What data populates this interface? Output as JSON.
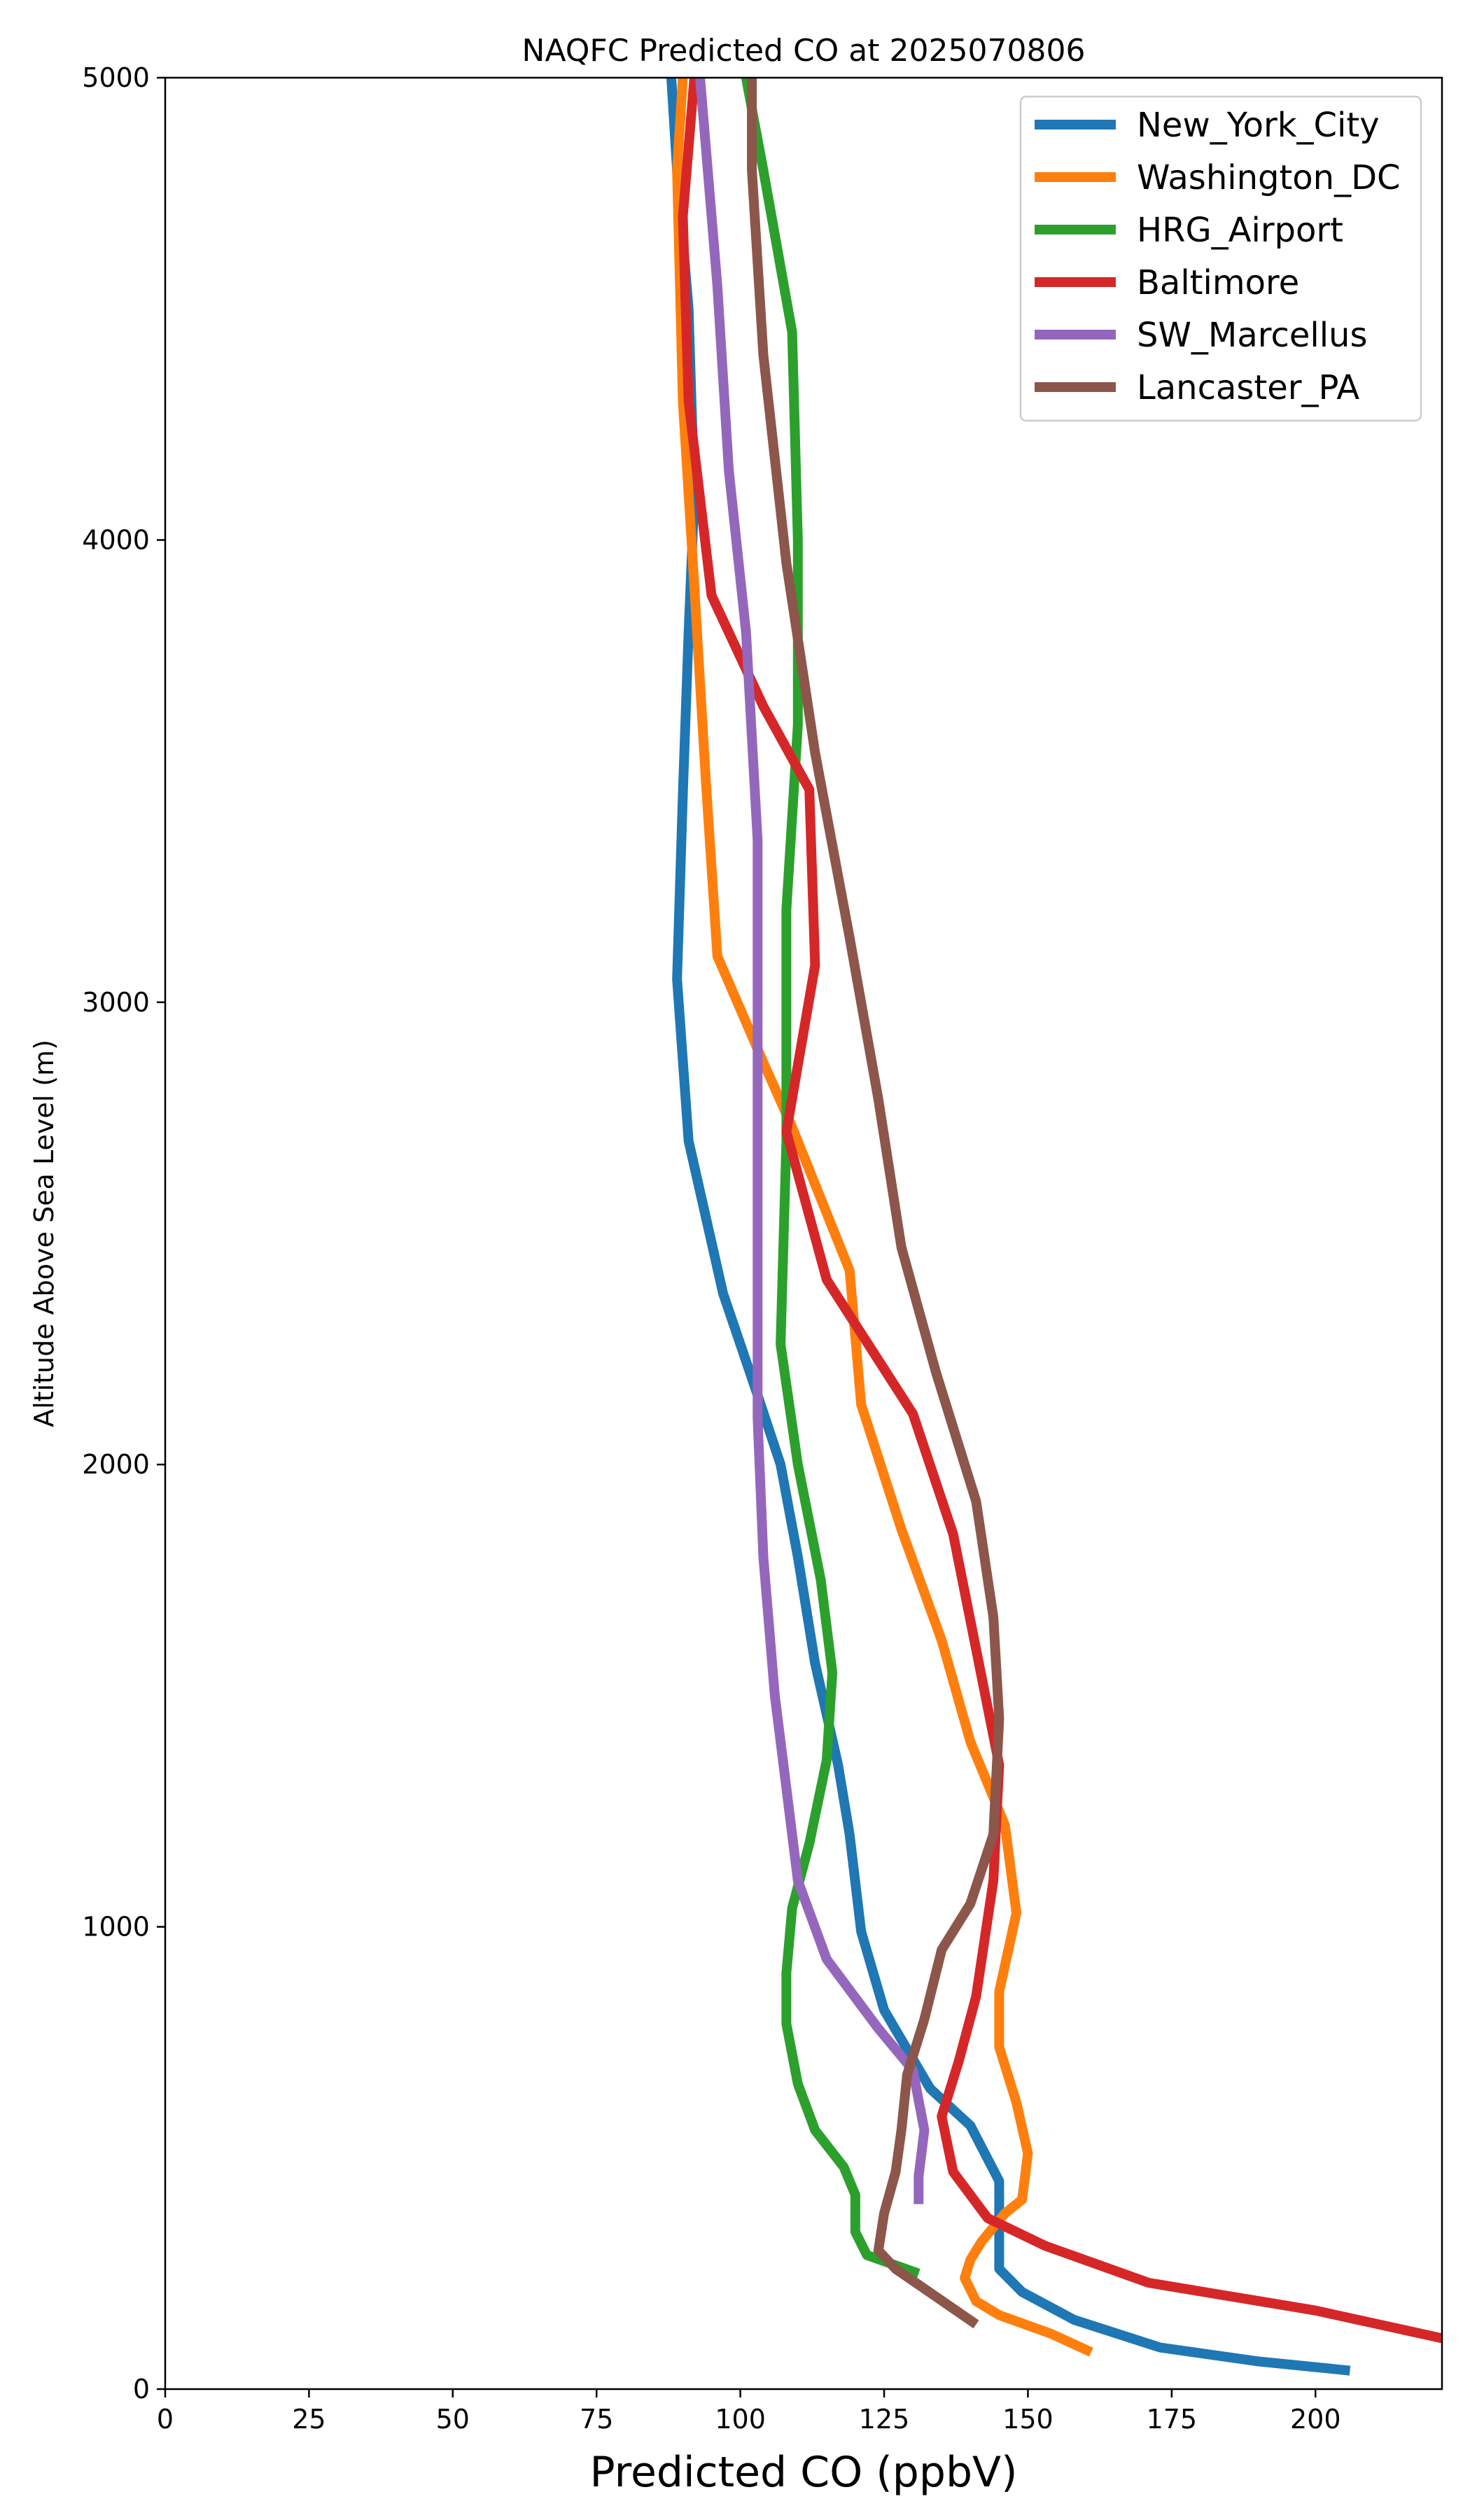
{
  "chart_data": {
    "type": "line",
    "title": "NAQFC Predicted CO at 2025070806",
    "xlabel": "Predicted CO (ppbV)",
    "ylabel": "Altitude Above Sea Level (m)",
    "xlim": [
      0,
      222
    ],
    "ylim": [
      0,
      5000
    ],
    "xticks": [
      0,
      25,
      50,
      75,
      100,
      125,
      150,
      175,
      200
    ],
    "yticks": [
      0,
      1000,
      2000,
      3000,
      4000,
      5000
    ],
    "grid": false,
    "legend_position": "top-right",
    "series": [
      {
        "name": "New_York_City",
        "color": "#1f77b4",
        "points": [
          [
            206,
            40
          ],
          [
            190,
            60
          ],
          [
            173,
            90
          ],
          [
            158,
            150
          ],
          [
            149,
            210
          ],
          [
            145,
            260
          ],
          [
            145,
            450
          ],
          [
            140,
            570
          ],
          [
            133,
            650
          ],
          [
            125,
            820
          ],
          [
            121,
            990
          ],
          [
            119,
            1200
          ],
          [
            117,
            1350
          ],
          [
            113,
            1570
          ],
          [
            110,
            1800
          ],
          [
            107,
            2000
          ],
          [
            103,
            2150
          ],
          [
            97,
            2370
          ],
          [
            91,
            2700
          ],
          [
            89,
            3050
          ],
          [
            90,
            3450
          ],
          [
            91,
            3800
          ],
          [
            92,
            4100
          ],
          [
            91,
            4500
          ],
          [
            89,
            4800
          ],
          [
            88,
            5000
          ]
        ]
      },
      {
        "name": "Washington_DC",
        "color": "#ff7f0e",
        "points": [
          [
            161,
            80
          ],
          [
            154,
            120
          ],
          [
            145,
            160
          ],
          [
            141,
            190
          ],
          [
            139,
            240
          ],
          [
            140,
            280
          ],
          [
            142,
            320
          ],
          [
            146,
            380
          ],
          [
            149,
            410
          ],
          [
            150,
            510
          ],
          [
            148,
            620
          ],
          [
            145,
            740
          ],
          [
            145,
            860
          ],
          [
            148,
            1030
          ],
          [
            146,
            1220
          ],
          [
            140,
            1400
          ],
          [
            135,
            1620
          ],
          [
            128,
            1860
          ],
          [
            121,
            2130
          ],
          [
            119,
            2420
          ],
          [
            109,
            2730
          ],
          [
            104,
            2870
          ],
          [
            96,
            3100
          ],
          [
            94,
            3480
          ],
          [
            92,
            3900
          ],
          [
            90,
            4300
          ],
          [
            89,
            4800
          ],
          [
            90,
            5000
          ]
        ]
      },
      {
        "name": "HRG_Airport",
        "color": "#2ca02c",
        "points": [
          [
            131,
            250
          ],
          [
            122,
            290
          ],
          [
            120,
            340
          ],
          [
            120,
            420
          ],
          [
            118,
            480
          ],
          [
            113,
            560
          ],
          [
            110,
            660
          ],
          [
            108,
            790
          ],
          [
            108,
            900
          ],
          [
            109,
            1040
          ],
          [
            112,
            1180
          ],
          [
            115,
            1360
          ],
          [
            116,
            1550
          ],
          [
            114,
            1750
          ],
          [
            110,
            2000
          ],
          [
            107,
            2260
          ],
          [
            108,
            2700
          ],
          [
            108,
            3200
          ],
          [
            110,
            3600
          ],
          [
            110,
            4000
          ],
          [
            109,
            4450
          ],
          [
            104,
            4800
          ],
          [
            101,
            5000
          ]
        ]
      },
      {
        "name": "Baltimore",
        "color": "#d62728",
        "points": [
          [
            222,
            110
          ],
          [
            200,
            170
          ],
          [
            171,
            230
          ],
          [
            153,
            310
          ],
          [
            143,
            370
          ],
          [
            137,
            470
          ],
          [
            135,
            590
          ],
          [
            138,
            710
          ],
          [
            141,
            850
          ],
          [
            144,
            1100
          ],
          [
            145,
            1350
          ],
          [
            141,
            1600
          ],
          [
            137,
            1850
          ],
          [
            130,
            2110
          ],
          [
            115,
            2400
          ],
          [
            108,
            2720
          ],
          [
            113,
            3080
          ],
          [
            112,
            3460
          ],
          [
            104,
            3640
          ],
          [
            95,
            3880
          ],
          [
            91,
            4300
          ],
          [
            90,
            4700
          ],
          [
            92,
            5000
          ]
        ]
      },
      {
        "name": "SW_Marcellus",
        "color": "#9467bd",
        "points": [
          [
            131,
            400
          ],
          [
            131,
            460
          ],
          [
            132,
            560
          ],
          [
            130,
            690
          ],
          [
            124,
            780
          ],
          [
            115,
            930
          ],
          [
            110,
            1100
          ],
          [
            108,
            1300
          ],
          [
            106,
            1500
          ],
          [
            104,
            1800
          ],
          [
            103,
            2100
          ],
          [
            103,
            2400
          ],
          [
            103,
            2700
          ],
          [
            103,
            3000
          ],
          [
            103,
            3350
          ],
          [
            101,
            3800
          ],
          [
            98,
            4150
          ],
          [
            96,
            4550
          ],
          [
            93,
            5000
          ]
        ]
      },
      {
        "name": "Lancaster_PA",
        "color": "#8c564b",
        "points": [
          [
            141,
            140
          ],
          [
            134,
            200
          ],
          [
            127,
            260
          ],
          [
            124,
            300
          ],
          [
            125,
            380
          ],
          [
            127,
            470
          ],
          [
            128,
            560
          ],
          [
            129,
            680
          ],
          [
            132,
            800
          ],
          [
            135,
            950
          ],
          [
            140,
            1050
          ],
          [
            144,
            1200
          ],
          [
            145,
            1450
          ],
          [
            144,
            1670
          ],
          [
            141,
            1920
          ],
          [
            134,
            2200
          ],
          [
            128,
            2470
          ],
          [
            124,
            2790
          ],
          [
            119,
            3140
          ],
          [
            113,
            3540
          ],
          [
            108,
            3950
          ],
          [
            104,
            4400
          ],
          [
            102,
            4800
          ],
          [
            102,
            5000
          ]
        ]
      }
    ]
  }
}
